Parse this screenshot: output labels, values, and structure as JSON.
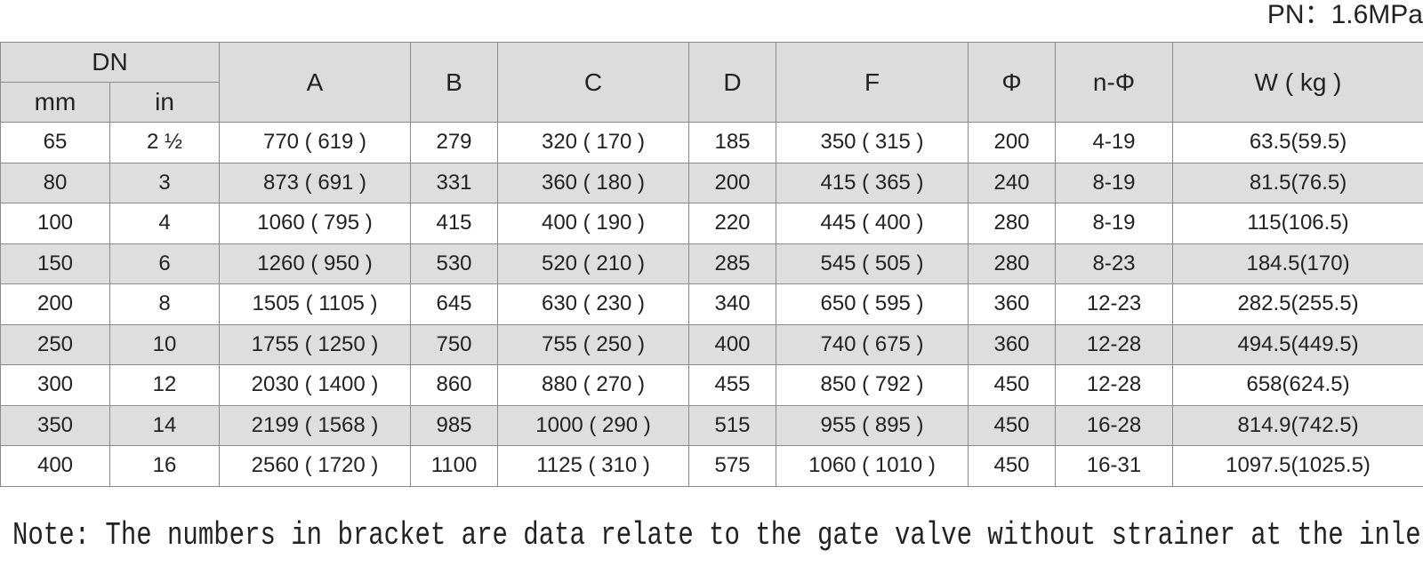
{
  "pressure": "PN：1.6MPa",
  "table": {
    "dn_header": "DN",
    "dn_sub": [
      "mm",
      "in"
    ],
    "headers": [
      "A",
      "B",
      "C",
      "D",
      "F",
      "Φ",
      "n-Φ",
      "W ( kg )"
    ],
    "rows": [
      [
        "65",
        "2 ½",
        "770 ( 619 )",
        "279",
        "320 ( 170 )",
        "185",
        "350 ( 315 )",
        "200",
        "4-19",
        "63.5(59.5)"
      ],
      [
        "80",
        "3",
        "873 ( 691 )",
        "331",
        "360 ( 180 )",
        "200",
        "415 ( 365 )",
        "240",
        "8-19",
        "81.5(76.5)"
      ],
      [
        "100",
        "4",
        "1060 ( 795 )",
        "415",
        "400 ( 190 )",
        "220",
        "445 ( 400 )",
        "280",
        "8-19",
        "115(106.5)"
      ],
      [
        "150",
        "6",
        "1260 ( 950 )",
        "530",
        "520 ( 210 )",
        "285",
        "545 ( 505 )",
        "280",
        "8-23",
        "184.5(170)"
      ],
      [
        "200",
        "8",
        "1505 ( 1105 )",
        "645",
        "630 ( 230 )",
        "340",
        "650 ( 595 )",
        "360",
        "12-23",
        "282.5(255.5)"
      ],
      [
        "250",
        "10",
        "1755 ( 1250 )",
        "750",
        "755 ( 250 )",
        "400",
        "740 ( 675 )",
        "360",
        "12-28",
        "494.5(449.5)"
      ],
      [
        "300",
        "12",
        "2030 ( 1400 )",
        "860",
        "880 ( 270 )",
        "455",
        "850 ( 792 )",
        "450",
        "12-28",
        "658(624.5)"
      ],
      [
        "350",
        "14",
        "2199 ( 1568 )",
        "985",
        "1000 ( 290 )",
        "515",
        "955 ( 895 )",
        "450",
        "16-28",
        "814.9(742.5)"
      ],
      [
        "400",
        "16",
        "2560 ( 1720 )",
        "1100",
        "1125 ( 310 )",
        "575",
        "1060 ( 1010 )",
        "450",
        "16-31",
        "1097.5(1025.5)"
      ]
    ]
  },
  "note": "Note: The numbers in bracket are data relate to the gate valve without strainer at the inlet"
}
